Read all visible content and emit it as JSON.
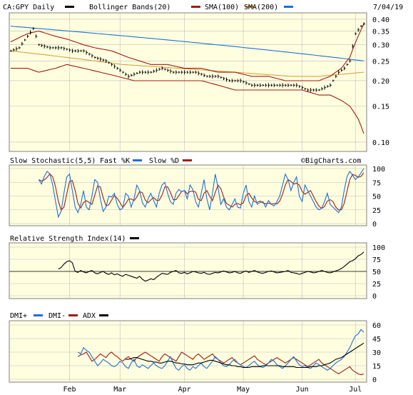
{
  "header": {
    "ticker_label": "CA:GPY Daily",
    "date": "7/04/19",
    "watermark": "©BigCharts.com"
  },
  "colors": {
    "panel_bg": "#ffffe0",
    "border": "#7f7f7f",
    "price": "#000000",
    "blue": "#1f6fd6",
    "red": "#a01c10",
    "orange": "#d9a040",
    "black": "#000000"
  },
  "x_axis": {
    "months": [
      "Feb",
      "Mar",
      "Apr",
      "May",
      "Jun",
      "Jul"
    ],
    "month_day_index": [
      21,
      39,
      62,
      83,
      104,
      123
    ]
  },
  "chart_data": [
    {
      "type": "line",
      "panel": "price",
      "legend": [
        {
          "label": "CA:GPY Daily",
          "color": "#000000"
        },
        {
          "label": "Bollinger Bands(20)",
          "color": "#a01c10"
        },
        {
          "label": "SMA(100)",
          "color": "#a01c10"
        },
        {
          "label": "SMA(200)",
          "color": "#d9a040"
        }
      ],
      "y_ticks": [
        "0.40",
        "0.35",
        "0.30",
        "0.25",
        "0.20",
        "0.15",
        "0.10"
      ],
      "ylim": [
        0.09,
        0.43
      ],
      "scale": "log",
      "day_count": 127,
      "price_close_knots": [
        [
          0,
          0.28
        ],
        [
          3,
          0.29
        ],
        [
          6,
          0.33
        ],
        [
          8,
          0.36
        ],
        [
          10,
          0.3
        ],
        [
          14,
          0.29
        ],
        [
          18,
          0.29
        ],
        [
          22,
          0.28
        ],
        [
          26,
          0.28
        ],
        [
          30,
          0.26
        ],
        [
          34,
          0.25
        ],
        [
          38,
          0.23
        ],
        [
          42,
          0.21
        ],
        [
          46,
          0.22
        ],
        [
          50,
          0.22
        ],
        [
          54,
          0.23
        ],
        [
          58,
          0.22
        ],
        [
          62,
          0.22
        ],
        [
          66,
          0.22
        ],
        [
          70,
          0.21
        ],
        [
          74,
          0.21
        ],
        [
          78,
          0.2
        ],
        [
          82,
          0.2
        ],
        [
          86,
          0.19
        ],
        [
          90,
          0.19
        ],
        [
          94,
          0.19
        ],
        [
          98,
          0.19
        ],
        [
          102,
          0.19
        ],
        [
          106,
          0.18
        ],
        [
          110,
          0.18
        ],
        [
          114,
          0.19
        ],
        [
          117,
          0.22
        ],
        [
          119,
          0.23
        ],
        [
          121,
          0.25
        ],
        [
          123,
          0.34
        ],
        [
          125,
          0.37
        ],
        [
          126,
          0.38
        ]
      ],
      "bollinger_upper_knots": [
        [
          0,
          0.31
        ],
        [
          6,
          0.34
        ],
        [
          10,
          0.35
        ],
        [
          16,
          0.33
        ],
        [
          20,
          0.32
        ],
        [
          26,
          0.3
        ],
        [
          30,
          0.29
        ],
        [
          36,
          0.28
        ],
        [
          42,
          0.26
        ],
        [
          46,
          0.25
        ],
        [
          50,
          0.24
        ],
        [
          56,
          0.24
        ],
        [
          62,
          0.23
        ],
        [
          68,
          0.23
        ],
        [
          74,
          0.22
        ],
        [
          80,
          0.22
        ],
        [
          86,
          0.21
        ],
        [
          92,
          0.21
        ],
        [
          98,
          0.2
        ],
        [
          104,
          0.2
        ],
        [
          110,
          0.2
        ],
        [
          114,
          0.21
        ],
        [
          118,
          0.23
        ],
        [
          121,
          0.26
        ],
        [
          124,
          0.33
        ],
        [
          126,
          0.38
        ]
      ],
      "bollinger_lower_knots": [
        [
          0,
          0.23
        ],
        [
          6,
          0.23
        ],
        [
          10,
          0.22
        ],
        [
          16,
          0.23
        ],
        [
          20,
          0.24
        ],
        [
          26,
          0.23
        ],
        [
          32,
          0.22
        ],
        [
          38,
          0.21
        ],
        [
          44,
          0.2
        ],
        [
          50,
          0.2
        ],
        [
          56,
          0.2
        ],
        [
          62,
          0.2
        ],
        [
          68,
          0.2
        ],
        [
          74,
          0.19
        ],
        [
          80,
          0.18
        ],
        [
          86,
          0.18
        ],
        [
          92,
          0.18
        ],
        [
          98,
          0.18
        ],
        [
          104,
          0.18
        ],
        [
          110,
          0.17
        ],
        [
          114,
          0.17
        ],
        [
          118,
          0.16
        ],
        [
          121,
          0.15
        ],
        [
          124,
          0.13
        ],
        [
          126,
          0.11
        ]
      ],
      "sma100_knots": [
        [
          0,
          0.28
        ],
        [
          10,
          0.27
        ],
        [
          20,
          0.26
        ],
        [
          30,
          0.25
        ],
        [
          40,
          0.24
        ],
        [
          50,
          0.235
        ],
        [
          60,
          0.23
        ],
        [
          70,
          0.225
        ],
        [
          80,
          0.22
        ],
        [
          90,
          0.215
        ],
        [
          100,
          0.21
        ],
        [
          110,
          0.21
        ],
        [
          118,
          0.215
        ],
        [
          126,
          0.22
        ]
      ],
      "sma200_knots": [
        [
          0,
          0.37
        ],
        [
          126,
          0.25
        ]
      ]
    },
    {
      "type": "line",
      "panel": "stochastic",
      "title": "Slow Stochastic(5,5)",
      "legend": [
        {
          "label": "Fast %K",
          "color": "#1f6fd6"
        },
        {
          "label": "Slow %D",
          "color": "#a01c10"
        }
      ],
      "y_ticks": [
        "100",
        "75",
        "50",
        "25",
        "0"
      ],
      "ylim": [
        0,
        100
      ],
      "fast_k": [
        80,
        72,
        86,
        95,
        90,
        70,
        40,
        12,
        22,
        55,
        85,
        90,
        60,
        30,
        20,
        35,
        60,
        30,
        25,
        50,
        80,
        75,
        45,
        22,
        30,
        50,
        48,
        55,
        35,
        25,
        28,
        55,
        50,
        30,
        45,
        70,
        60,
        38,
        30,
        45,
        55,
        42,
        30,
        55,
        70,
        75,
        55,
        40,
        35,
        55,
        62,
        58,
        60,
        45,
        70,
        62,
        40,
        30,
        55,
        80,
        45,
        25,
        55,
        90,
        65,
        35,
        45,
        30,
        25,
        35,
        45,
        30,
        28,
        55,
        70,
        40,
        30,
        50,
        35,
        38,
        40,
        30,
        42,
        35,
        32,
        40,
        50,
        70,
        90,
        80,
        60,
        75,
        85,
        50,
        40,
        70,
        60,
        50,
        40,
        30,
        25,
        28,
        40,
        55,
        35,
        30,
        25,
        20,
        30,
        60,
        85,
        95,
        88,
        80,
        85,
        92,
        100
      ]
    },
    {
      "type": "line",
      "panel": "rsi",
      "title": "Relative Strength Index(14)",
      "y_ticks": [
        "100",
        "75",
        "50",
        "25",
        "0"
      ],
      "ylim": [
        0,
        100
      ],
      "values": [
        55,
        58,
        65,
        70,
        72,
        68,
        50,
        48,
        52,
        49,
        47,
        50,
        52,
        47,
        45,
        48,
        50,
        46,
        44,
        47,
        43,
        45,
        42,
        40,
        44,
        42,
        40,
        38,
        36,
        40,
        34,
        30,
        32,
        35,
        33,
        38,
        42,
        46,
        45,
        44,
        48,
        50,
        52,
        47,
        46,
        48,
        45,
        47,
        50,
        49,
        47,
        46,
        48,
        45,
        44,
        46,
        48,
        47,
        49,
        51,
        49,
        47,
        48,
        50,
        47,
        46,
        49,
        51,
        48,
        50,
        52,
        49,
        47,
        46,
        48,
        50,
        51,
        49,
        47,
        48,
        49,
        50,
        52,
        48,
        47,
        46,
        44,
        46,
        48,
        50,
        49,
        47,
        48,
        50,
        52,
        50,
        48,
        47,
        49,
        51,
        53,
        56,
        60,
        65,
        70,
        72,
        76,
        82,
        85,
        90
      ]
    },
    {
      "type": "line",
      "panel": "dmi",
      "legend": [
        {
          "label": "DMI+",
          "color": "#1f6fd6"
        },
        {
          "label": "DMI-",
          "color": "#a01c10"
        },
        {
          "label": "ADX",
          "color": "#000000"
        }
      ],
      "y_ticks": [
        "60",
        "45",
        "30",
        "15",
        "0"
      ],
      "ylim": [
        0,
        60
      ],
      "dmi_plus": [
        30,
        28,
        35,
        32,
        30,
        25,
        20,
        15,
        18,
        22,
        20,
        18,
        15,
        14,
        16,
        20,
        18,
        14,
        12,
        18,
        22,
        15,
        13,
        16,
        14,
        12,
        15,
        18,
        15,
        13,
        12,
        15,
        20,
        25,
        18,
        12,
        10,
        14,
        16,
        12,
        10,
        14,
        12,
        15,
        18,
        14,
        12,
        16,
        20,
        25,
        22,
        18,
        15,
        14,
        16,
        20,
        22,
        18,
        16,
        14,
        13,
        15,
        18,
        20,
        16,
        14,
        13,
        15,
        18,
        22,
        20,
        16,
        14,
        12,
        15,
        18,
        22,
        25,
        20,
        16,
        14,
        15,
        13,
        12,
        15,
        18,
        16,
        14,
        12,
        10,
        12,
        15,
        18,
        20,
        22,
        25,
        30,
        35,
        42,
        48,
        50,
        55,
        52
      ],
      "dmi_minus": [
        25,
        27,
        28,
        30,
        25,
        20,
        22,
        25,
        28,
        26,
        24,
        28,
        30,
        27,
        25,
        22,
        20,
        23,
        25,
        22,
        20,
        24,
        26,
        28,
        30,
        28,
        26,
        24,
        22,
        20,
        25,
        28,
        26,
        24,
        22,
        20,
        25,
        30,
        28,
        26,
        24,
        22,
        26,
        28,
        25,
        22,
        24,
        26,
        28,
        24,
        22,
        20,
        18,
        20,
        22,
        24,
        20,
        18,
        16,
        18,
        20,
        22,
        24,
        26,
        22,
        20,
        18,
        16,
        18,
        20,
        22,
        24,
        22,
        20,
        18,
        20,
        22,
        24,
        22,
        20,
        18,
        16,
        14,
        16,
        18,
        20,
        22,
        18,
        16,
        14,
        12,
        10,
        8,
        6,
        8,
        10,
        12,
        14,
        10,
        8,
        6,
        5,
        6
      ],
      "adx": [
        22,
        22,
        23,
        24,
        24,
        23,
        22,
        21,
        20,
        20,
        19,
        19,
        18,
        18,
        19,
        20,
        20,
        19,
        18,
        18,
        17,
        17,
        16,
        16,
        16,
        17,
        18,
        18,
        19,
        20,
        21,
        21,
        20,
        19,
        18,
        17,
        16,
        16,
        15,
        15,
        14,
        14,
        13,
        13,
        13,
        14,
        14,
        14,
        14,
        15,
        15,
        15,
        15,
        15,
        15,
        15,
        14,
        14,
        14,
        14,
        14,
        13,
        13,
        13,
        13,
        13,
        14,
        14,
        14,
        15,
        15,
        16,
        17,
        18,
        20,
        22,
        23,
        24,
        26,
        28,
        30,
        32,
        34,
        36,
        38,
        40
      ]
    }
  ]
}
